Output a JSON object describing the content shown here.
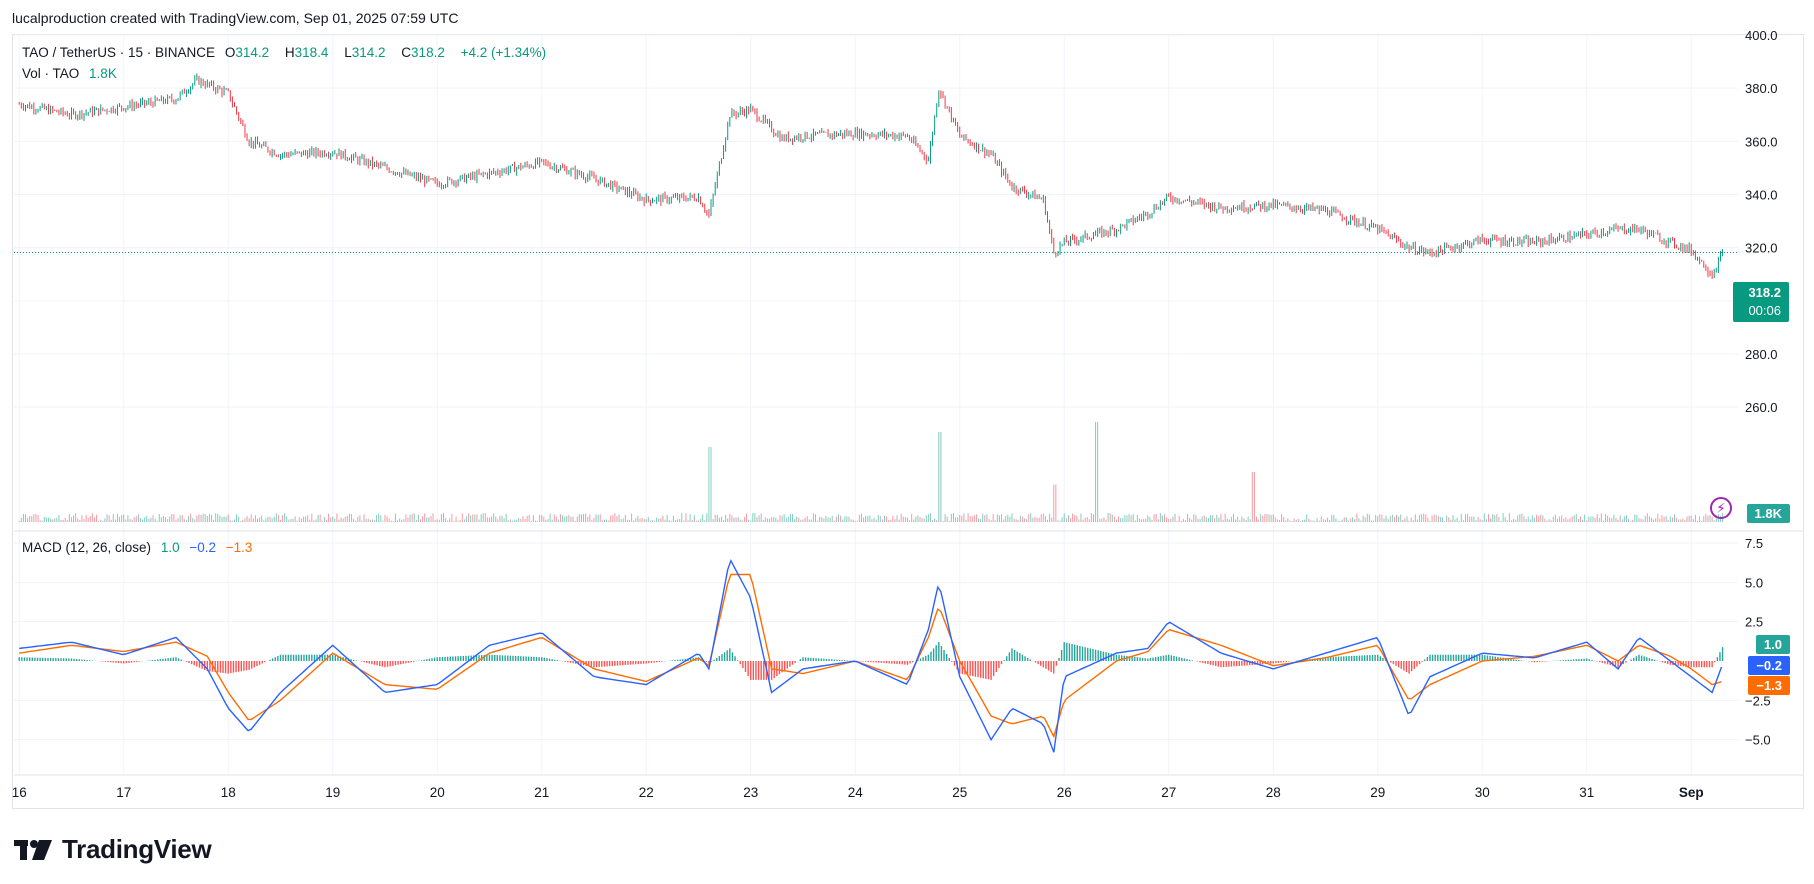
{
  "header": {
    "credit": "lucalproduction created with TradingView.com, Sep 01, 2025 07:59 UTC"
  },
  "legend": {
    "symbol": "TAO / TetherUS · 15 · BINANCE",
    "o_label": "O",
    "o_value": "314.2",
    "h_label": "H",
    "h_value": "318.4",
    "l_label": "L",
    "l_value": "314.2",
    "c_label": "C",
    "c_value": "318.2",
    "change": "+4.2 (+1.34%)",
    "vol_label": "Vol · TAO",
    "vol_value": "1.8K",
    "macd_label": "MACD (12, 26, close)",
    "macd_hist": "1.0",
    "macd_line": "−0.2",
    "macd_signal": "−1.3"
  },
  "price_tag": {
    "price": "318.2",
    "countdown": "00:06"
  },
  "vol_tag": "1.8K",
  "macd_tags": {
    "hist": "1.0",
    "macd": "−0.2",
    "signal": "−1.3"
  },
  "colors": {
    "up": "#089981",
    "down": "#f23645",
    "macd": "#2962ff",
    "signal": "#ff6d00",
    "grid": "#f0f3fa"
  },
  "logo": {
    "text": "TradingView"
  },
  "chart_data": [
    {
      "type": "line",
      "title": "TAO / TetherUS · 15 · BINANCE",
      "x": [
        "16",
        "16.5",
        "17",
        "17.5",
        "17.7",
        "18",
        "18.2",
        "18.5",
        "19",
        "19.5",
        "20",
        "20.5",
        "21",
        "21.5",
        "22",
        "22.5",
        "22.6",
        "22.8",
        "23",
        "23.3",
        "23.5",
        "24",
        "24.5",
        "24.7",
        "24.8",
        "25",
        "25.3",
        "25.5",
        "25.8",
        "25.9",
        "26",
        "26.5",
        "26.8",
        "27",
        "27.5",
        "28",
        "28.5",
        "29",
        "29.3",
        "29.5",
        "30",
        "30.5",
        "31",
        "31.3",
        "31.5",
        "31.8",
        "32",
        "32.2",
        "32.3"
      ],
      "values": [
        374,
        370,
        373,
        376,
        383,
        378,
        360,
        355,
        356,
        350,
        344,
        348,
        352,
        346,
        338,
        339,
        332,
        370,
        372,
        361,
        362,
        363,
        362,
        353,
        380,
        362,
        355,
        343,
        338,
        318,
        322,
        327,
        333,
        339,
        335,
        336,
        334,
        327,
        320,
        318,
        323,
        322,
        325,
        327,
        327,
        322,
        319,
        310,
        318
      ],
      "xlabel": "",
      "ylabel": "",
      "ylim": [
        245,
        400
      ],
      "y_ticks": [
        "400.0",
        "380.0",
        "360.0",
        "340.0",
        "320.0",
        "300.0",
        "280.0",
        "260.0"
      ],
      "x_ticks": [
        "16",
        "17",
        "18",
        "19",
        "20",
        "21",
        "22",
        "23",
        "24",
        "25",
        "26",
        "27",
        "28",
        "29",
        "30",
        "31",
        "Sep"
      ],
      "last_price": 318.2,
      "grid": true
    },
    {
      "type": "bar",
      "title": "Vol · TAO",
      "series": [
        {
          "values": [
            1.8
          ]
        }
      ],
      "spikes": [
        {
          "x": "22.6",
          "value": 30
        },
        {
          "x": "24.8",
          "value": 36
        },
        {
          "x": "25.9",
          "value": 15
        },
        {
          "x": "26.3",
          "value": 40
        },
        {
          "x": "27.8",
          "value": 20
        }
      ]
    },
    {
      "type": "line",
      "title": "MACD (12, 26, close)",
      "x": [
        16,
        16.5,
        17,
        17.5,
        17.8,
        18,
        18.2,
        18.5,
        19,
        19.5,
        20,
        20.5,
        21,
        21.5,
        22,
        22.5,
        22.6,
        22.8,
        23,
        23.2,
        23.5,
        24,
        24.5,
        24.7,
        24.8,
        25,
        25.3,
        25.5,
        25.8,
        25.9,
        26,
        26.5,
        26.8,
        27,
        27.5,
        28,
        28.5,
        29,
        29.3,
        29.5,
        30,
        30.5,
        31,
        31.3,
        31.5,
        31.8,
        32,
        32.2,
        32.3
      ],
      "series": [
        {
          "name": "MACD",
          "values": [
            0.8,
            1.2,
            0.4,
            1.5,
            -0.5,
            -3,
            -4.5,
            -2,
            1,
            -2,
            -1.5,
            1,
            1.8,
            -1,
            -1.5,
            0.5,
            -0.5,
            6.5,
            4,
            -2,
            -0.5,
            0,
            -1.5,
            2,
            5,
            -1,
            -5,
            -3,
            -4,
            -5.8,
            -1,
            0.5,
            0.8,
            2.5,
            0.5,
            -0.5,
            0.5,
            1.5,
            -3.5,
            -1,
            0.5,
            0.2,
            1.2,
            -0.5,
            1.5,
            0,
            -1,
            -2,
            -0.2
          ]
        },
        {
          "name": "Signal",
          "values": [
            0.5,
            1.0,
            0.6,
            1.2,
            0.3,
            -2,
            -3.8,
            -2.5,
            0.5,
            -1.5,
            -1.8,
            0.5,
            1.5,
            -0.5,
            -1.3,
            0.2,
            -0.3,
            5.5,
            5.5,
            -0.5,
            -0.8,
            0,
            -1.2,
            1.5,
            3.5,
            0,
            -3.5,
            -4,
            -3.5,
            -4.8,
            -2.5,
            0,
            0.6,
            2,
            1,
            -0.3,
            0.2,
            1,
            -2.5,
            -1.5,
            0,
            0.3,
            1,
            0,
            1,
            0.3,
            -0.5,
            -1.5,
            -1.3
          ]
        }
      ],
      "ylim": [
        -6.5,
        7.5
      ],
      "y_ticks": [
        "7.5",
        "5.0",
        "2.5",
        "−2.5",
        "−5.0"
      ]
    }
  ]
}
